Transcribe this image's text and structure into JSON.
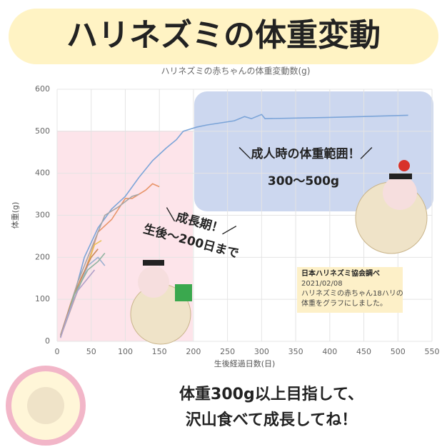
{
  "banner": {
    "title": "ハリネズミの体重変動"
  },
  "callouts": {
    "adult_heading": "＼成人時の体重範囲！／",
    "adult_range": "300〜500g",
    "growth_heading": "＼成長期！／",
    "growth_range": "生後〜200日まで"
  },
  "note": {
    "lines": [
      "日本ハリネズミ協会調べ",
      "2021/02/08",
      "ハリネズミの赤ちゃん18ハリの",
      "体重をグラフにしました。"
    ]
  },
  "footer": {
    "lines": [
      "体重300g以上目指して、",
      "沢山食べて成長してね！"
    ]
  },
  "chart_data": {
    "type": "line",
    "title": "ハリネズミの赤ちゃんの体重変動数(g)",
    "xlabel": "生後経過日数(日)",
    "ylabel": "体重(g)",
    "xlim": [
      0,
      550
    ],
    "ylim": [
      0,
      600
    ],
    "xticks": [
      0,
      50,
      100,
      150,
      200,
      250,
      300,
      350,
      400,
      450,
      500,
      550
    ],
    "yticks": [
      0,
      100,
      200,
      300,
      400,
      500,
      600
    ],
    "grid": true,
    "series": [
      {
        "color": "#7ba4d8",
        "x": [
          5,
          20,
          40,
          60,
          80,
          100,
          120,
          140,
          160,
          175,
          185,
          195,
          205,
          220,
          260,
          275,
          285,
          300,
          305,
          400,
          515
        ],
        "values": [
          10,
          80,
          200,
          270,
          315,
          345,
          390,
          430,
          460,
          480,
          500,
          505,
          510,
          515,
          525,
          535,
          530,
          540,
          530,
          533,
          538
        ]
      },
      {
        "color": "#e8956a",
        "x": [
          5,
          30,
          50,
          60,
          80,
          100,
          110,
          130,
          140,
          150
        ],
        "values": [
          10,
          120,
          210,
          260,
          290,
          340,
          340,
          360,
          375,
          368
        ]
      },
      {
        "color": "#a6a6a6",
        "x": [
          5,
          30,
          50,
          70,
          90,
          110,
          120
        ],
        "values": [
          15,
          140,
          220,
          300,
          320,
          345,
          350
        ]
      },
      {
        "color": "#e8c25a",
        "x": [
          5,
          20,
          40,
          55,
          65
        ],
        "values": [
          10,
          80,
          160,
          230,
          240
        ]
      },
      {
        "color": "#9bb0d0",
        "x": [
          5,
          25,
          45,
          60,
          70
        ],
        "values": [
          10,
          100,
          180,
          200,
          180
        ]
      },
      {
        "color": "#c98a5a",
        "x": [
          5,
          20,
          35,
          50,
          60
        ],
        "values": [
          12,
          90,
          150,
          200,
          220
        ]
      },
      {
        "color": "#8fb3a0",
        "x": [
          5,
          25,
          45,
          60,
          70
        ],
        "values": [
          10,
          110,
          170,
          190,
          210
        ]
      },
      {
        "color": "#b0a0c8",
        "x": [
          5,
          15,
          30,
          45,
          55
        ],
        "values": [
          8,
          60,
          120,
          150,
          170
        ]
      }
    ]
  }
}
